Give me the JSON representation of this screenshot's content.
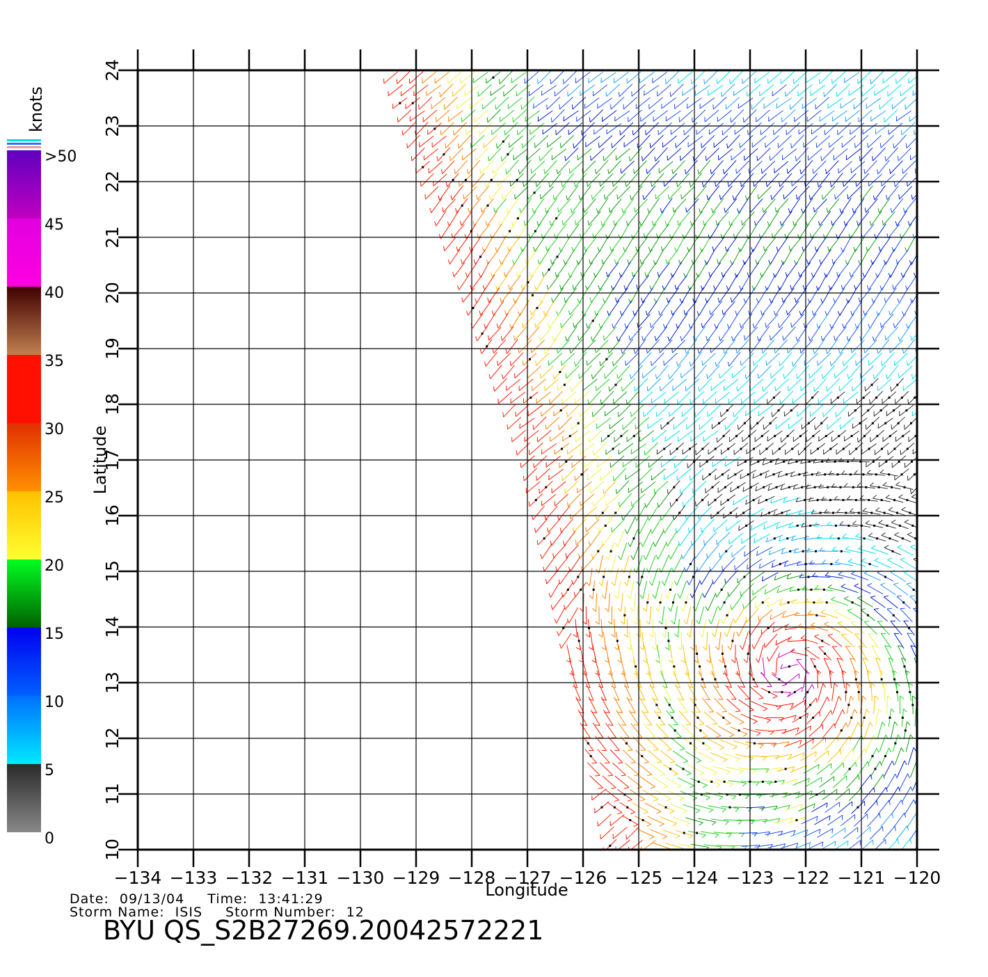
{
  "map": {
    "title": "BYU  QS_S2B27269.20042572221",
    "date_label": "Date:",
    "date_value": "09/13/04",
    "time_label": "Time:",
    "time_value": "13:41:29",
    "storm_name_label": "Storm  Name:",
    "storm_name_value": "ISIS",
    "storm_number_label": "Storm  Number:",
    "storm_number_value": "12",
    "xlabel": "Longitude",
    "ylabel": "Latitude",
    "lon_range": [
      -134,
      -120
    ],
    "lat_range": [
      10,
      24
    ],
    "lon_ticks": [
      "−134",
      "−133",
      "−132",
      "−131",
      "−130",
      "−129",
      "−128",
      "−127",
      "−126",
      "−125",
      "−124",
      "−123",
      "−122",
      "−121",
      "−120"
    ],
    "lat_ticks": [
      "10",
      "11",
      "12",
      "13",
      "14",
      "15",
      "16",
      "17",
      "18",
      "19",
      "20",
      "21",
      "22",
      "23",
      "24"
    ],
    "grid": true,
    "swath_west_edge": [
      [
        -129.5,
        24
      ],
      [
        -127,
        17
      ],
      [
        -125.5,
        10
      ]
    ],
    "storm_center": [
      -122.3,
      13.2
    ]
  },
  "colorbar": {
    "unit": "knots",
    "labels": [
      ">50",
      "45",
      "40",
      "35",
      "30",
      "25",
      "20",
      "15",
      "10",
      "5",
      "0"
    ],
    "bands": [
      {
        "range": [
          0,
          5
        ],
        "colors": [
          "#888888",
          "#2a2a2a"
        ]
      },
      {
        "range": [
          5,
          10
        ],
        "colors": [
          "#00e8ff",
          "#0070ff"
        ]
      },
      {
        "range": [
          10,
          15
        ],
        "colors": [
          "#0060ff",
          "#0000ee"
        ]
      },
      {
        "range": [
          15,
          20
        ],
        "colors": [
          "#006000",
          "#00ff20"
        ]
      },
      {
        "range": [
          20,
          25
        ],
        "colors": [
          "#ffff30",
          "#ffc000"
        ]
      },
      {
        "range": [
          25,
          30
        ],
        "colors": [
          "#ff9000",
          "#e03000"
        ]
      },
      {
        "range": [
          30,
          35
        ],
        "colors": [
          "#ff1000",
          "#ff1000"
        ]
      },
      {
        "range": [
          35,
          40
        ],
        "colors": [
          "#c08050",
          "#400000"
        ]
      },
      {
        "range": [
          40,
          45
        ],
        "colors": [
          "#ff00e0",
          "#e000e0"
        ]
      },
      {
        "range": [
          45,
          50
        ],
        "colors": [
          "#c000c0",
          "#6000c0"
        ]
      }
    ],
    "top_stripes": [
      "#00e0e0",
      "#3070ff",
      "#e0a0a0"
    ]
  }
}
